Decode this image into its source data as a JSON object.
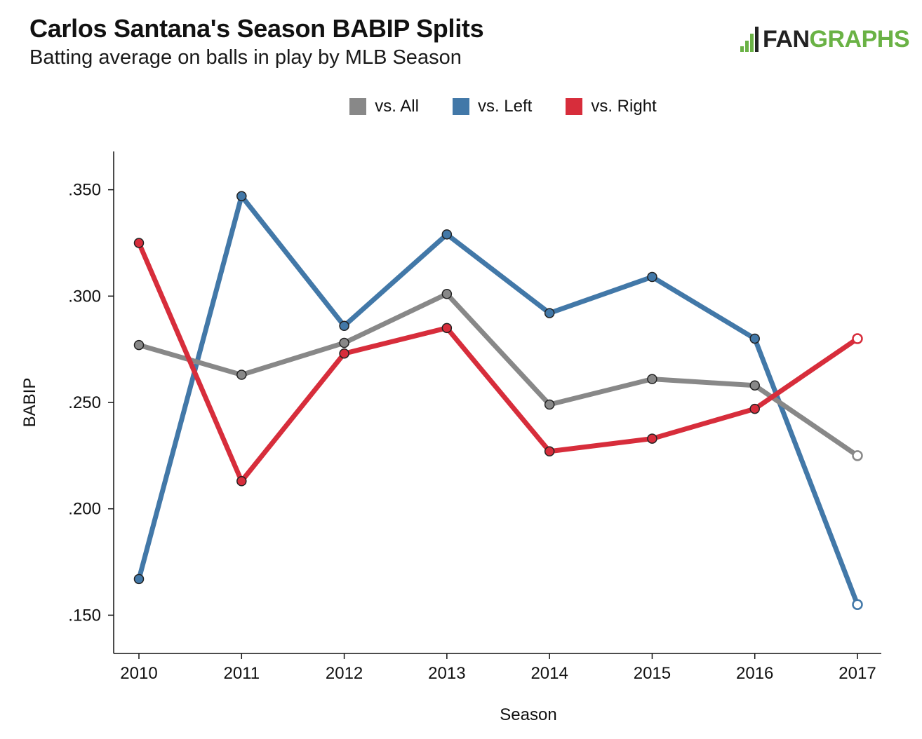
{
  "title": "Carlos Santana's Season BABIP Splits",
  "subtitle": "Batting average on balls in play by MLB Season",
  "logo": {
    "part1": "FAN",
    "part2": "GRAPHS"
  },
  "colors": {
    "all": "#888888",
    "left": "#4278a8",
    "right": "#d72d3b",
    "logo_green": "#6ab245"
  },
  "legend": [
    {
      "key": "all",
      "label": "vs. All"
    },
    {
      "key": "left",
      "label": "vs. Left"
    },
    {
      "key": "right",
      "label": "vs. Right"
    }
  ],
  "chart_data": {
    "type": "line",
    "xlabel": "Season",
    "ylabel": "BABIP",
    "x": [
      "2010",
      "2011",
      "2012",
      "2013",
      "2014",
      "2015",
      "2016",
      "2017"
    ],
    "ylim": [
      0.132,
      0.368
    ],
    "yticks": [
      0.15,
      0.2,
      0.25,
      0.3,
      0.35
    ],
    "ytick_labels": [
      ".150",
      ".200",
      ".250",
      ".300",
      ".350"
    ],
    "series": [
      {
        "name": "vs. All",
        "key": "all",
        "values": [
          0.277,
          0.263,
          0.278,
          0.301,
          0.249,
          0.261,
          0.258,
          0.225
        ],
        "open_last": true
      },
      {
        "name": "vs. Left",
        "key": "left",
        "values": [
          0.167,
          0.347,
          0.286,
          0.329,
          0.292,
          0.309,
          0.28,
          0.155
        ],
        "open_last": true
      },
      {
        "name": "vs. Right",
        "key": "right",
        "values": [
          0.325,
          0.213,
          0.273,
          0.285,
          0.227,
          0.233,
          0.247,
          0.28
        ],
        "open_last": true
      }
    ]
  }
}
